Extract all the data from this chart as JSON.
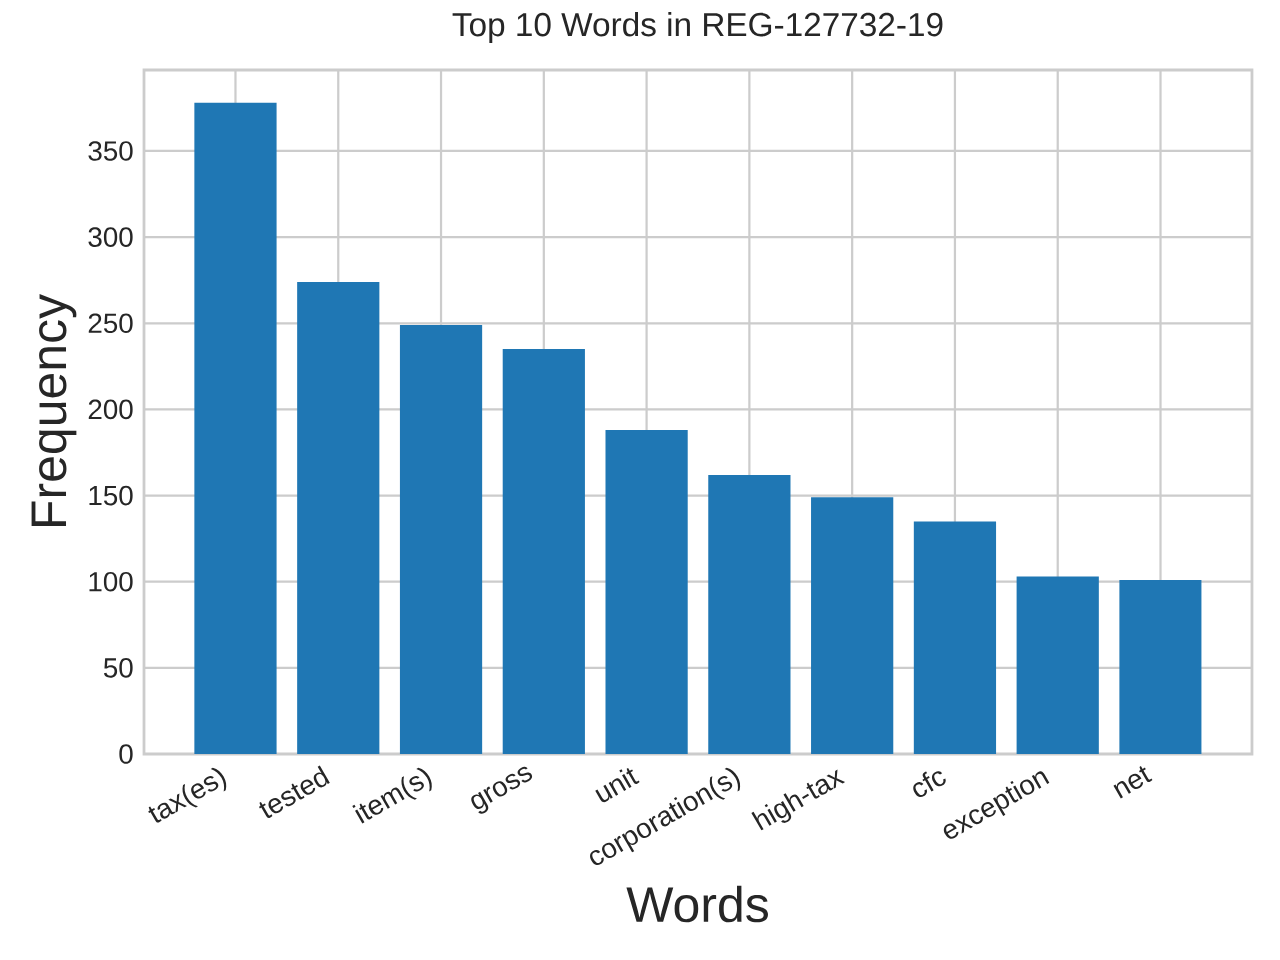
{
  "chart_data": {
    "type": "bar",
    "title": "Top 10 Words in REG-127732-19",
    "xlabel": "Words",
    "ylabel": "Frequency",
    "categories": [
      "tax(es)",
      "tested",
      "item(s)",
      "gross",
      "unit",
      "corporation(s)",
      "high-tax",
      "cfc",
      "exception",
      "net"
    ],
    "values": [
      378,
      274,
      249,
      235,
      188,
      162,
      149,
      135,
      103,
      101
    ],
    "color": "#1f77b4",
    "ylim": [
      0,
      397
    ],
    "yticks": [
      0,
      50,
      100,
      150,
      200,
      250,
      300,
      350
    ],
    "grid": true
  }
}
